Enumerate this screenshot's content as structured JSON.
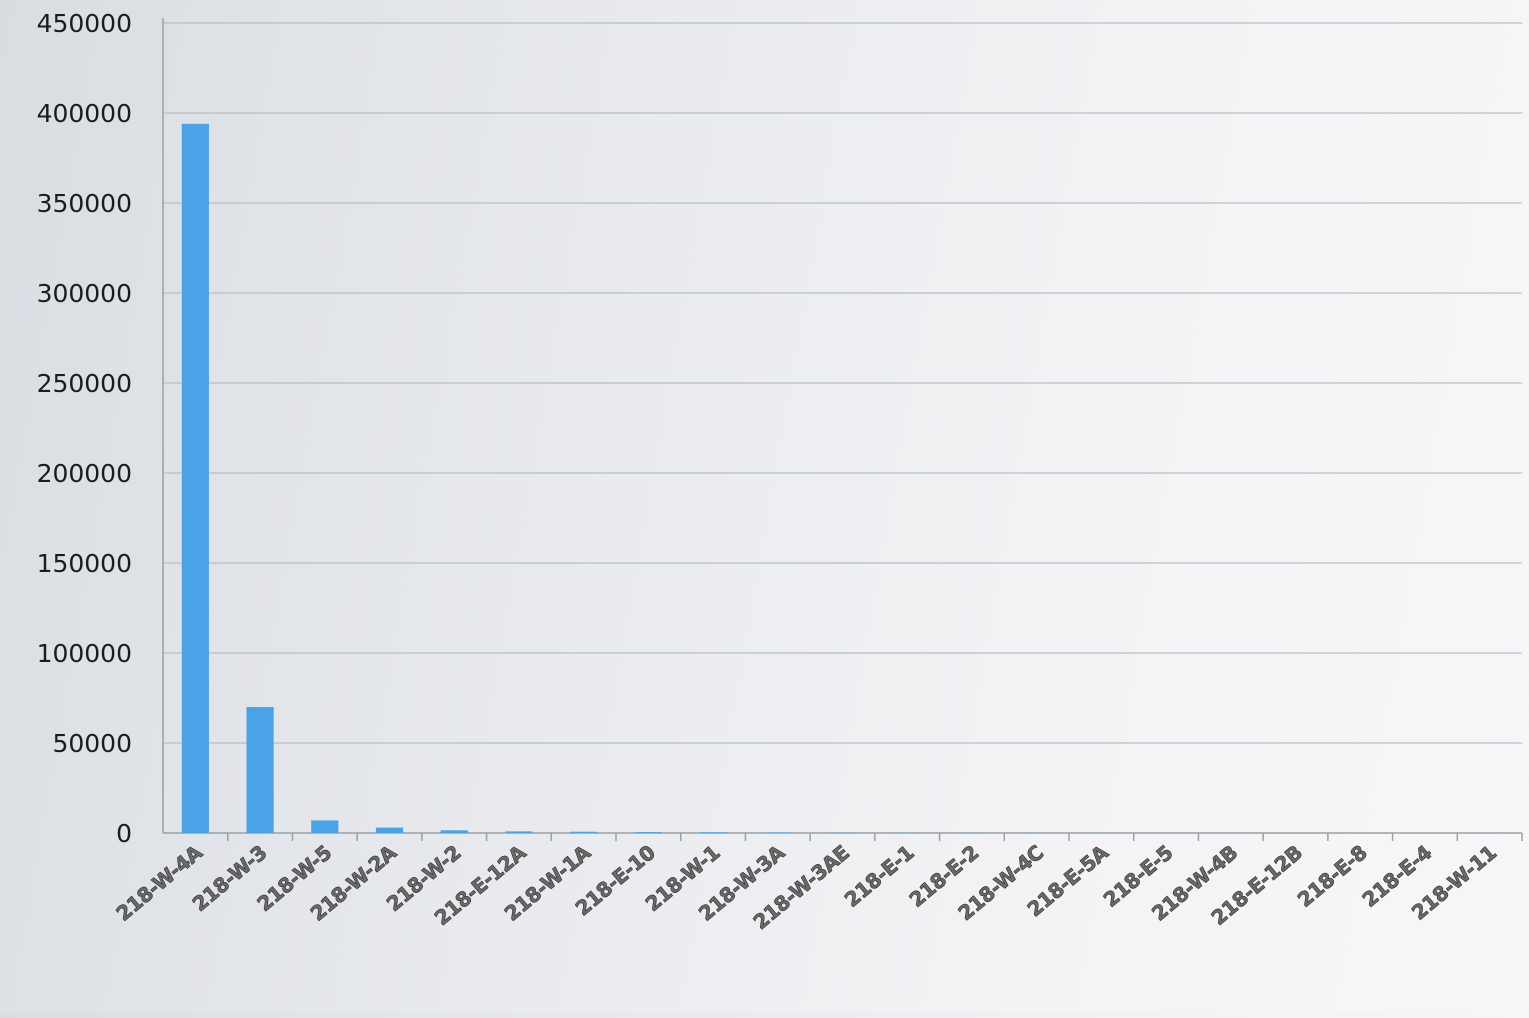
{
  "chart_data": {
    "type": "bar",
    "title": "",
    "xlabel": "",
    "ylabel": "",
    "ylim": [
      0,
      450000
    ],
    "yticks": [
      "0",
      "50000",
      "100000",
      "150000",
      "200000",
      "250000",
      "300000",
      "350000",
      "400000",
      "450000"
    ],
    "grid": true,
    "legend": "none",
    "bar_color": "#4aa3e6",
    "categories": [
      "218-W-4A",
      "218-W-3",
      "218-W-5",
      "218-W-2A",
      "218-W-2",
      "218-E-12A",
      "218-W-1A",
      "218-E-10",
      "218-W-1",
      "218-W-3A",
      "218-W-3AE",
      "218-E-1",
      "218-E-2",
      "218-W-4C",
      "218-E-5A",
      "218-E-5",
      "218-W-4B",
      "218-E-12B",
      "218-E-8",
      "218-E-4",
      "218-W-11"
    ],
    "values": [
      394000,
      70000,
      7000,
      3000,
      1500,
      900,
      700,
      500,
      400,
      300,
      150,
      100,
      80,
      60,
      50,
      40,
      30,
      20,
      15,
      10,
      5
    ]
  }
}
